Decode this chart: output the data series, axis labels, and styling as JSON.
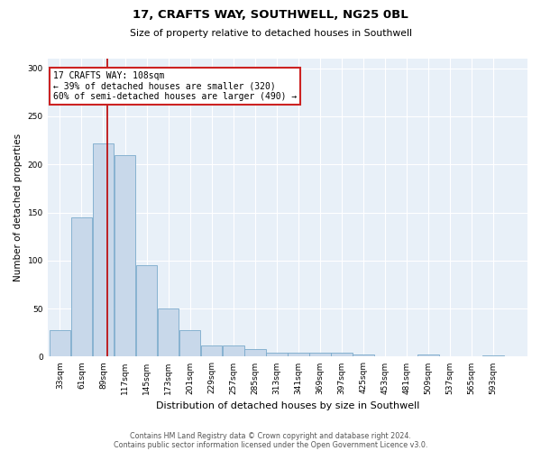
{
  "title1": "17, CRAFTS WAY, SOUTHWELL, NG25 0BL",
  "title2": "Size of property relative to detached houses in Southwell",
  "xlabel": "Distribution of detached houses by size in Southwell",
  "ylabel": "Number of detached properties",
  "bar_color": "#c8d8ea",
  "bar_edgecolor": "#7aaacc",
  "background_color": "#e8f0f8",
  "fig_background": "#ffffff",
  "bin_labels": [
    "33sqm",
    "61sqm",
    "89sqm",
    "117sqm",
    "145sqm",
    "173sqm",
    "201sqm",
    "229sqm",
    "257sqm",
    "285sqm",
    "313sqm",
    "341sqm",
    "369sqm",
    "397sqm",
    "425sqm",
    "453sqm",
    "481sqm",
    "509sqm",
    "537sqm",
    "565sqm",
    "593sqm"
  ],
  "bin_edges": [
    33,
    61,
    89,
    117,
    145,
    173,
    201,
    229,
    257,
    285,
    313,
    341,
    369,
    397,
    425,
    453,
    481,
    509,
    537,
    565,
    593,
    621
  ],
  "bar_heights": [
    28,
    145,
    222,
    210,
    95,
    50,
    28,
    12,
    12,
    8,
    4,
    4,
    4,
    4,
    2,
    0,
    0,
    2,
    0,
    0,
    1
  ],
  "vline_x": 108,
  "vline_color": "#bb0000",
  "annotation_title": "17 CRAFTS WAY: 108sqm",
  "annotation_line1": "← 39% of detached houses are smaller (320)",
  "annotation_line2": "60% of semi-detached houses are larger (490) →",
  "annotation_box_facecolor": "#ffffff",
  "annotation_box_edgecolor": "#cc2222",
  "ylim": [
    0,
    310
  ],
  "yticks": [
    0,
    50,
    100,
    150,
    200,
    250,
    300
  ],
  "footer1": "Contains HM Land Registry data © Crown copyright and database right 2024.",
  "footer2": "Contains public sector information licensed under the Open Government Licence v3.0."
}
